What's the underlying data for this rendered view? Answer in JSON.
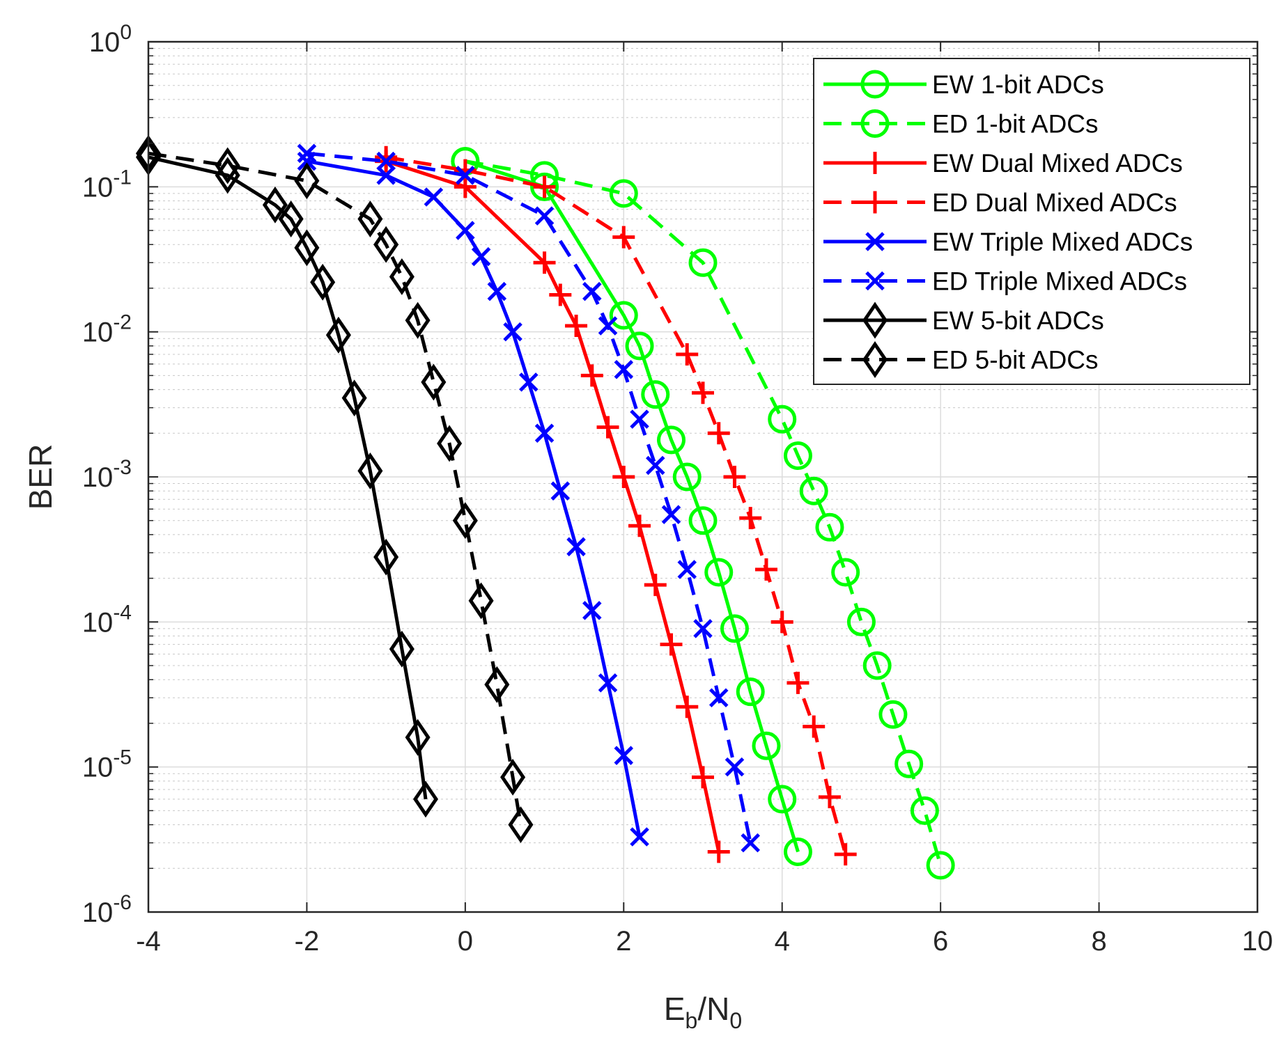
{
  "chart_data": {
    "type": "line",
    "title": "",
    "xlabel": "E",
    "xlabel_sub1": "b",
    "xlabel_mid": "/N",
    "xlabel_sub2": "0",
    "ylabel": "BER",
    "yscale": "log",
    "xlim": [
      -4,
      10
    ],
    "ylim": [
      1e-06,
      1
    ],
    "grid": true,
    "minor_grid": true,
    "legend_position": "top-right",
    "xticks": [
      -4,
      -2,
      0,
      2,
      4,
      6,
      8,
      10
    ],
    "xtick_labels": [
      "-4",
      "-2",
      "0",
      "2",
      "4",
      "6",
      "8",
      "10"
    ],
    "yticks": [
      {
        "value": 1,
        "base": "10",
        "exp": "0"
      },
      {
        "value": 0.1,
        "base": "10",
        "exp": "-1"
      },
      {
        "value": 0.01,
        "base": "10",
        "exp": "-2"
      },
      {
        "value": 0.001,
        "base": "10",
        "exp": "-3"
      },
      {
        "value": 0.0001,
        "base": "10",
        "exp": "-4"
      },
      {
        "value": 1e-05,
        "base": "10",
        "exp": "-5"
      },
      {
        "value": 1e-06,
        "base": "10",
        "exp": "-6"
      }
    ],
    "series": [
      {
        "name": "EW 1-bit ADCs",
        "color": "#00ff00",
        "dash": "solid",
        "marker": "circle",
        "x": [
          0,
          1,
          2,
          2.2,
          2.4,
          2.6,
          2.8,
          3.0,
          3.2,
          3.4,
          3.6,
          3.8,
          4.0,
          4.2
        ],
        "y": [
          0.15,
          0.1,
          0.013,
          0.008,
          0.0037,
          0.0018,
          0.001,
          0.0005,
          0.00022,
          9e-05,
          3.3e-05,
          1.4e-05,
          6e-06,
          2.6e-06
        ]
      },
      {
        "name": "ED 1-bit ADCs",
        "color": "#00ff00",
        "dash": "dashed",
        "marker": "circle",
        "x": [
          0,
          1,
          2,
          3,
          4,
          4.2,
          4.4,
          4.6,
          4.8,
          5.0,
          5.2,
          5.4,
          5.6,
          5.8,
          6.0
        ],
        "y": [
          0.15,
          0.12,
          0.09,
          0.03,
          0.0025,
          0.0014,
          0.0008,
          0.00045,
          0.00022,
          0.0001,
          5e-05,
          2.3e-05,
          1.05e-05,
          5e-06,
          2.1e-06
        ]
      },
      {
        "name": "EW Dual Mixed ADCs",
        "color": "#ff0000",
        "dash": "solid",
        "marker": "plus",
        "x": [
          -1,
          0,
          1,
          1.2,
          1.4,
          1.6,
          1.8,
          2.0,
          2.2,
          2.4,
          2.6,
          2.8,
          3.0,
          3.2
        ],
        "y": [
          0.15,
          0.1,
          0.03,
          0.018,
          0.011,
          0.005,
          0.0022,
          0.001,
          0.00046,
          0.00018,
          7e-05,
          2.6e-05,
          8.5e-06,
          2.6e-06
        ]
      },
      {
        "name": "ED Dual Mixed ADCs",
        "color": "#ff0000",
        "dash": "dashed",
        "marker": "plus",
        "x": [
          -1,
          0,
          1,
          2,
          2.8,
          3.0,
          3.2,
          3.4,
          3.6,
          3.8,
          4.0,
          4.2,
          4.4,
          4.6,
          4.8
        ],
        "y": [
          0.16,
          0.13,
          0.1,
          0.045,
          0.007,
          0.0038,
          0.002,
          0.001,
          0.00052,
          0.00023,
          0.0001,
          3.8e-05,
          1.9e-05,
          6.2e-06,
          2.5e-06
        ]
      },
      {
        "name": "EW Triple Mixed ADCs",
        "color": "#0000ff",
        "dash": "solid",
        "marker": "x",
        "x": [
          -2,
          -1,
          -0.4,
          0,
          0.2,
          0.4,
          0.6,
          0.8,
          1.0,
          1.2,
          1.4,
          1.6,
          1.8,
          2.0,
          2.2
        ],
        "y": [
          0.15,
          0.12,
          0.085,
          0.05,
          0.033,
          0.019,
          0.01,
          0.0045,
          0.002,
          0.0008,
          0.00033,
          0.00012,
          3.8e-05,
          1.2e-05,
          3.3e-06
        ]
      },
      {
        "name": "ED Triple Mixed ADCs",
        "color": "#0000ff",
        "dash": "dashed",
        "marker": "x",
        "x": [
          -2,
          -1,
          0,
          1,
          1.6,
          1.8,
          2.0,
          2.2,
          2.4,
          2.6,
          2.8,
          3.0,
          3.2,
          3.4,
          3.6
        ],
        "y": [
          0.17,
          0.15,
          0.12,
          0.063,
          0.019,
          0.011,
          0.0055,
          0.0025,
          0.0012,
          0.00055,
          0.00023,
          9e-05,
          3e-05,
          1e-05,
          3e-06
        ]
      },
      {
        "name": "EW 5-bit ADCs",
        "color": "#000000",
        "dash": "solid",
        "marker": "diamond",
        "x": [
          -4,
          -3,
          -2.4,
          -2.2,
          -2.0,
          -1.8,
          -1.6,
          -1.4,
          -1.2,
          -1.0,
          -0.8,
          -0.6,
          -0.5
        ],
        "y": [
          0.16,
          0.12,
          0.075,
          0.06,
          0.038,
          0.022,
          0.0095,
          0.0035,
          0.0011,
          0.00028,
          6.5e-05,
          1.6e-05,
          6e-06
        ]
      },
      {
        "name": "ED 5-bit ADCs",
        "color": "#000000",
        "dash": "dashed",
        "marker": "diamond",
        "x": [
          -4,
          -3,
          -2,
          -1.2,
          -1.0,
          -0.8,
          -0.6,
          -0.4,
          -0.2,
          0,
          0.2,
          0.4,
          0.6,
          0.7
        ],
        "y": [
          0.17,
          0.14,
          0.11,
          0.06,
          0.04,
          0.024,
          0.012,
          0.0045,
          0.0017,
          0.0005,
          0.00014,
          3.7e-05,
          8.5e-06,
          4e-06
        ]
      }
    ]
  }
}
